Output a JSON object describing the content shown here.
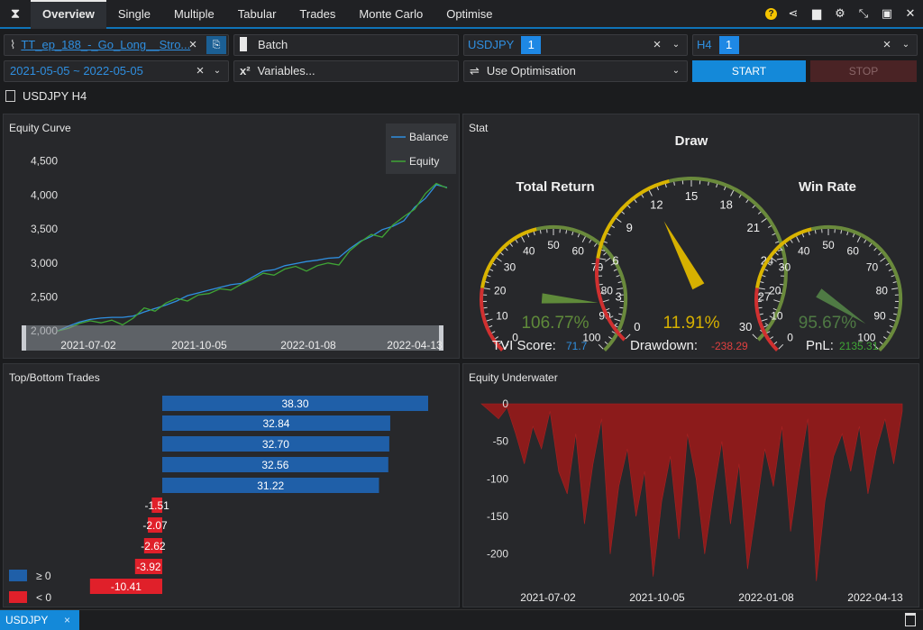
{
  "nav": {
    "tabs": [
      "Overview",
      "Single",
      "Multiple",
      "Tabular",
      "Trades",
      "Monte Carlo",
      "Optimise"
    ],
    "active_tab": "Overview"
  },
  "controls": {
    "strategy_file": "TT_ep_188_-_Go_Long__Stro...",
    "batch_label": "Batch",
    "symbol": "USDJPY",
    "symbol_count": "1",
    "timeframe": "H4",
    "timeframe_count": "1",
    "date_range": "2021-05-05 ~ 2022-05-05",
    "variables_label": "Variables...",
    "variables_prefix": "x²",
    "optimisation_mode": "Use Optimisation",
    "start_label": "START",
    "stop_label": "STOP"
  },
  "instrument_label": "USDJPY H4",
  "panels": {
    "equity_curve": "Equity Curve",
    "stat": "Stat",
    "top_bottom": "Top/Bottom Trades",
    "underwater": "Equity Underwater"
  },
  "stat": {
    "total_return": {
      "label": "Total Return",
      "value": "106.77%",
      "ticks": [
        "0",
        "10",
        "20",
        "30",
        "40",
        "50",
        "60",
        "70",
        "80",
        "90",
        "100"
      ],
      "fraction": 0.85
    },
    "draw": {
      "label": "Draw",
      "value": "11.91%",
      "ticks": [
        "0",
        "3",
        "6",
        "9",
        "12",
        "15",
        "18",
        "21",
        "24",
        "27",
        "30"
      ],
      "fraction": 0.397
    },
    "win_rate": {
      "label": "Win Rate",
      "value": "95.67%",
      "ticks": [
        "0",
        "10",
        "20",
        "30",
        "40",
        "50",
        "60",
        "70",
        "80",
        "90",
        "100"
      ],
      "fraction": 0.957
    },
    "tvi_label": "TVI Score:",
    "tvi_value": "71.7",
    "drawdown_label": "Drawdown:",
    "drawdown_value": "-238.29",
    "pnl_label": "PnL:",
    "pnl_value": "2135.31"
  },
  "legend_bottom": {
    "pos": "≥ 0",
    "neg": "< 0"
  },
  "colors": {
    "accent": "#1489d9",
    "balance": "#2f8fe0",
    "equity": "#3fa535",
    "pos_bar": "#1f5fa8",
    "neg_bar": "#e0202a",
    "underwater": "#8c1b1b"
  },
  "chart_data": [
    {
      "type": "line",
      "title": "Equity Curve",
      "ylim": [
        1950,
        4600
      ],
      "yticks": [
        "2,000",
        "2,500",
        "3,000",
        "3,500",
        "4,000",
        "4,500"
      ],
      "xticks": [
        "2021-07-02",
        "2021-10-05",
        "2022-01-08",
        "2022-04-13"
      ],
      "legend": "top-right",
      "series": [
        {
          "name": "Balance",
          "values": [
            2000,
            2070,
            2130,
            2170,
            2190,
            2200,
            2200,
            2220,
            2280,
            2330,
            2380,
            2440,
            2520,
            2560,
            2600,
            2640,
            2680,
            2700,
            2790,
            2880,
            2900,
            2960,
            2990,
            3020,
            3040,
            3070,
            3080,
            3210,
            3320,
            3390,
            3490,
            3540,
            3620,
            3820,
            3950,
            4150,
            4110
          ]
        },
        {
          "name": "Equity",
          "values": [
            2000,
            2040,
            2110,
            2150,
            2120,
            2160,
            2090,
            2190,
            2340,
            2290,
            2410,
            2480,
            2440,
            2530,
            2550,
            2620,
            2600,
            2690,
            2760,
            2850,
            2820,
            2910,
            2950,
            2880,
            2960,
            3000,
            2970,
            3180,
            3310,
            3420,
            3380,
            3560,
            3680,
            3790,
            4020,
            4170,
            4100
          ]
        }
      ]
    },
    {
      "type": "bar",
      "title": "Top/Bottom Trades",
      "values": [
        38.3,
        32.84,
        32.7,
        32.56,
        31.22,
        -1.51,
        -2.07,
        -2.62,
        -3.92,
        -10.41
      ],
      "labels": [
        "38.30",
        "32.84",
        "32.70",
        "32.56",
        "31.22",
        "-1.51",
        "-2.07",
        "-2.62",
        "-3.92",
        "-10.41"
      ],
      "legend": [
        "≥ 0",
        "< 0"
      ]
    },
    {
      "type": "area",
      "title": "Equity Underwater",
      "ylim": [
        -240,
        0
      ],
      "yticks": [
        "0",
        "-50",
        "-100",
        "-150",
        "-200"
      ],
      "xticks": [
        "2021-07-02",
        "2021-10-05",
        "2022-01-08",
        "2022-04-13"
      ],
      "values": [
        0,
        -10,
        -20,
        -5,
        -40,
        -80,
        -30,
        -60,
        -10,
        -90,
        -120,
        -40,
        -160,
        -80,
        -20,
        -200,
        -110,
        -60,
        -150,
        -90,
        -230,
        -130,
        -70,
        -180,
        -40,
        -100,
        -200,
        -120,
        -50,
        -160,
        -80,
        -220,
        -140,
        -60,
        -110,
        -30,
        -170,
        -90,
        -20,
        -236,
        -130,
        -70,
        -40,
        -90,
        -30,
        -120,
        -60,
        -20,
        -80,
        -10
      ]
    }
  ]
}
